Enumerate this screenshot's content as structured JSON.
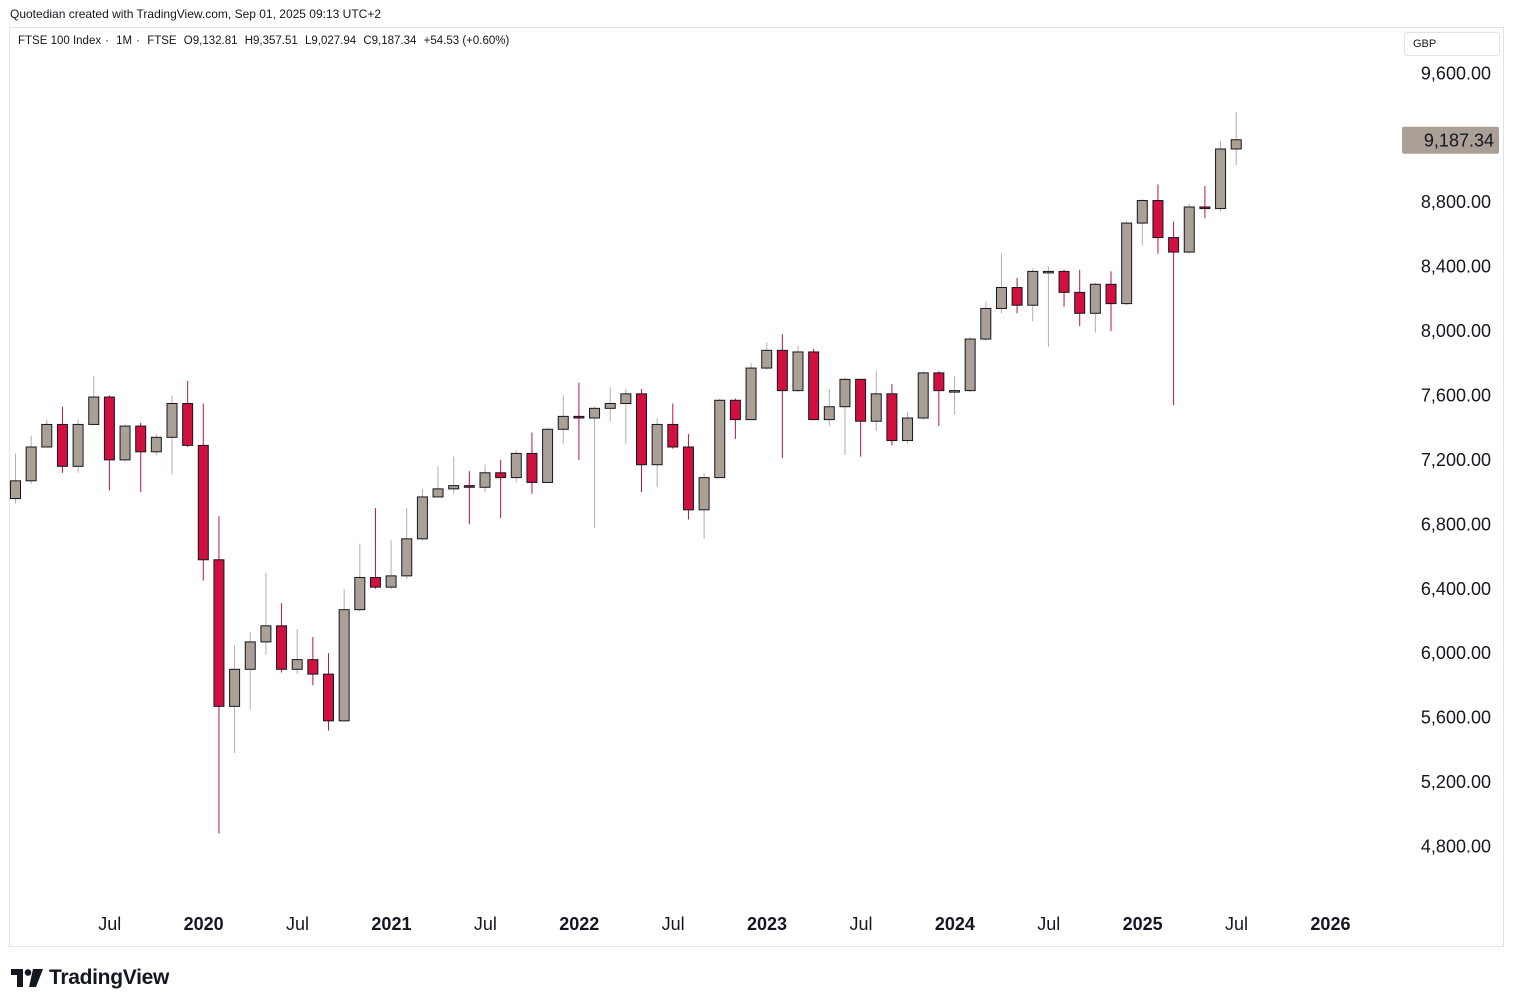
{
  "header": {
    "attribution": "Quotedian created with TradingView.com, Sep 01, 2025 09:13 UTC+2"
  },
  "legend": {
    "symbol": "FTSE 100 Index",
    "interval": "1M",
    "exchange": "FTSE",
    "open": "O9,132.81",
    "high": "H9,357.51",
    "low": "L9,027.94",
    "close": "C9,187.34",
    "change": "+54.53 (+0.60%)"
  },
  "currency_label": "GBP",
  "last_price_label": "9,187.34",
  "brand": {
    "name": "TradingView"
  },
  "colors": {
    "up": "#aba095",
    "down": "#d1103f",
    "wick_up": "#b7aea5",
    "wick_down": "#b8154a",
    "border": "#131722",
    "price_tag": "#aba095"
  },
  "chart_data": {
    "type": "candlestick",
    "interval": "1M",
    "ylim": [
      4600,
      9800
    ],
    "y_ticks": [
      "9,600.00",
      "8,800.00",
      "8,400.00",
      "8,000.00",
      "7,600.00",
      "7,200.00",
      "6,800.00",
      "6,400.00",
      "6,000.00",
      "5,600.00",
      "5,200.00",
      "4,800.00"
    ],
    "y_tick_values": [
      9600,
      8800,
      8400,
      8000,
      7600,
      7200,
      6800,
      6400,
      6000,
      5600,
      5200,
      4800
    ],
    "x_ticks": [
      {
        "label": "Jul",
        "index": 5,
        "year": false
      },
      {
        "label": "2020",
        "index": 11,
        "year": true
      },
      {
        "label": "Jul",
        "index": 17,
        "year": false
      },
      {
        "label": "2021",
        "index": 23,
        "year": true
      },
      {
        "label": "Jul",
        "index": 29,
        "year": false
      },
      {
        "label": "2022",
        "index": 35,
        "year": true
      },
      {
        "label": "Jul",
        "index": 41,
        "year": false
      },
      {
        "label": "2023",
        "index": 47,
        "year": true
      },
      {
        "label": "Jul",
        "index": 53,
        "year": false
      },
      {
        "label": "2024",
        "index": 59,
        "year": true
      },
      {
        "label": "Jul",
        "index": 65,
        "year": false
      },
      {
        "label": "2025",
        "index": 71,
        "year": true
      },
      {
        "label": "Jul",
        "index": 77,
        "year": false
      },
      {
        "label": "2026",
        "index": 83,
        "year": true
      }
    ],
    "candles": [
      {
        "date": "2019-02",
        "o": 6960,
        "h": 7240,
        "l": 6930,
        "c": 7070
      },
      {
        "date": "2019-03",
        "o": 7070,
        "h": 7350,
        "l": 7050,
        "c": 7280
      },
      {
        "date": "2019-04",
        "o": 7280,
        "h": 7450,
        "l": 7280,
        "c": 7420
      },
      {
        "date": "2019-05",
        "o": 7420,
        "h": 7530,
        "l": 7120,
        "c": 7160
      },
      {
        "date": "2019-06",
        "o": 7160,
        "h": 7450,
        "l": 7120,
        "c": 7420
      },
      {
        "date": "2019-07",
        "o": 7420,
        "h": 7720,
        "l": 7420,
        "c": 7590
      },
      {
        "date": "2019-08",
        "o": 7590,
        "h": 7600,
        "l": 7010,
        "c": 7200
      },
      {
        "date": "2019-09",
        "o": 7200,
        "h": 7420,
        "l": 7190,
        "c": 7410
      },
      {
        "date": "2019-10",
        "o": 7410,
        "h": 7430,
        "l": 7000,
        "c": 7250
      },
      {
        "date": "2019-11",
        "o": 7250,
        "h": 7360,
        "l": 7230,
        "c": 7340
      },
      {
        "date": "2019-12",
        "o": 7340,
        "h": 7600,
        "l": 7110,
        "c": 7550
      },
      {
        "date": "2020-01",
        "o": 7550,
        "h": 7690,
        "l": 7280,
        "c": 7290
      },
      {
        "date": "2020-02",
        "o": 7290,
        "h": 7550,
        "l": 6450,
        "c": 6580
      },
      {
        "date": "2020-03",
        "o": 6580,
        "h": 6850,
        "l": 4880,
        "c": 5670
      },
      {
        "date": "2020-04",
        "o": 5670,
        "h": 6050,
        "l": 5380,
        "c": 5900
      },
      {
        "date": "2020-05",
        "o": 5900,
        "h": 6130,
        "l": 5650,
        "c": 6070
      },
      {
        "date": "2020-06",
        "o": 6070,
        "h": 6500,
        "l": 5990,
        "c": 6170
      },
      {
        "date": "2020-07",
        "o": 6170,
        "h": 6310,
        "l": 5880,
        "c": 5900
      },
      {
        "date": "2020-08",
        "o": 5900,
        "h": 6150,
        "l": 5870,
        "c": 5960
      },
      {
        "date": "2020-09",
        "o": 5960,
        "h": 6100,
        "l": 5800,
        "c": 5870
      },
      {
        "date": "2020-10",
        "o": 5870,
        "h": 6000,
        "l": 5520,
        "c": 5580
      },
      {
        "date": "2020-11",
        "o": 5580,
        "h": 6400,
        "l": 5580,
        "c": 6270
      },
      {
        "date": "2020-12",
        "o": 6270,
        "h": 6680,
        "l": 6260,
        "c": 6470
      },
      {
        "date": "2021-01",
        "o": 6470,
        "h": 6900,
        "l": 6400,
        "c": 6410
      },
      {
        "date": "2021-02",
        "o": 6410,
        "h": 6700,
        "l": 6400,
        "c": 6480
      },
      {
        "date": "2021-03",
        "o": 6480,
        "h": 6900,
        "l": 6460,
        "c": 6710
      },
      {
        "date": "2021-04",
        "o": 6710,
        "h": 7020,
        "l": 6700,
        "c": 6970
      },
      {
        "date": "2021-05",
        "o": 6970,
        "h": 7160,
        "l": 6970,
        "c": 7020
      },
      {
        "date": "2021-06",
        "o": 7020,
        "h": 7220,
        "l": 6990,
        "c": 7040
      },
      {
        "date": "2021-07",
        "o": 7040,
        "h": 7130,
        "l": 6800,
        "c": 7030
      },
      {
        "date": "2021-08",
        "o": 7030,
        "h": 7170,
        "l": 7000,
        "c": 7120
      },
      {
        "date": "2021-09",
        "o": 7120,
        "h": 7200,
        "l": 6840,
        "c": 7090
      },
      {
        "date": "2021-10",
        "o": 7090,
        "h": 7260,
        "l": 7060,
        "c": 7240
      },
      {
        "date": "2021-11",
        "o": 7240,
        "h": 7370,
        "l": 6990,
        "c": 7060
      },
      {
        "date": "2021-12",
        "o": 7060,
        "h": 7400,
        "l": 7060,
        "c": 7390
      },
      {
        "date": "2022-01",
        "o": 7390,
        "h": 7600,
        "l": 7300,
        "c": 7470
      },
      {
        "date": "2022-02",
        "o": 7470,
        "h": 7680,
        "l": 7200,
        "c": 7460
      },
      {
        "date": "2022-03",
        "o": 7460,
        "h": 7530,
        "l": 6780,
        "c": 7520
      },
      {
        "date": "2022-04",
        "o": 7520,
        "h": 7650,
        "l": 7440,
        "c": 7550
      },
      {
        "date": "2022-05",
        "o": 7550,
        "h": 7640,
        "l": 7300,
        "c": 7610
      },
      {
        "date": "2022-06",
        "o": 7610,
        "h": 7640,
        "l": 7000,
        "c": 7170
      },
      {
        "date": "2022-07",
        "o": 7170,
        "h": 7460,
        "l": 7030,
        "c": 7420
      },
      {
        "date": "2022-08",
        "o": 7420,
        "h": 7550,
        "l": 7270,
        "c": 7280
      },
      {
        "date": "2022-09",
        "o": 7280,
        "h": 7360,
        "l": 6830,
        "c": 6890
      },
      {
        "date": "2022-10",
        "o": 6890,
        "h": 7120,
        "l": 6710,
        "c": 7090
      },
      {
        "date": "2022-11",
        "o": 7090,
        "h": 7580,
        "l": 7090,
        "c": 7570
      },
      {
        "date": "2022-12",
        "o": 7570,
        "h": 7580,
        "l": 7330,
        "c": 7450
      },
      {
        "date": "2023-01",
        "o": 7450,
        "h": 7800,
        "l": 7450,
        "c": 7770
      },
      {
        "date": "2023-02",
        "o": 7770,
        "h": 7930,
        "l": 7760,
        "c": 7880
      },
      {
        "date": "2023-03",
        "o": 7880,
        "h": 7980,
        "l": 7210,
        "c": 7630
      },
      {
        "date": "2023-04",
        "o": 7630,
        "h": 7910,
        "l": 7620,
        "c": 7870
      },
      {
        "date": "2023-05",
        "o": 7870,
        "h": 7890,
        "l": 7450,
        "c": 7450
      },
      {
        "date": "2023-06",
        "o": 7450,
        "h": 7640,
        "l": 7410,
        "c": 7530
      },
      {
        "date": "2023-07",
        "o": 7530,
        "h": 7710,
        "l": 7230,
        "c": 7700
      },
      {
        "date": "2023-08",
        "o": 7700,
        "h": 7700,
        "l": 7220,
        "c": 7440
      },
      {
        "date": "2023-09",
        "o": 7440,
        "h": 7750,
        "l": 7380,
        "c": 7610
      },
      {
        "date": "2023-10",
        "o": 7610,
        "h": 7670,
        "l": 7290,
        "c": 7320
      },
      {
        "date": "2023-11",
        "o": 7320,
        "h": 7500,
        "l": 7300,
        "c": 7460
      },
      {
        "date": "2023-12",
        "o": 7460,
        "h": 7750,
        "l": 7450,
        "c": 7740
      },
      {
        "date": "2024-01",
        "o": 7740,
        "h": 7750,
        "l": 7410,
        "c": 7630
      },
      {
        "date": "2024-02",
        "o": 7630,
        "h": 7720,
        "l": 7480,
        "c": 7630
      },
      {
        "date": "2024-03",
        "o": 7630,
        "h": 7960,
        "l": 7620,
        "c": 7950
      },
      {
        "date": "2024-04",
        "o": 7950,
        "h": 8180,
        "l": 7940,
        "c": 8140
      },
      {
        "date": "2024-05",
        "o": 8140,
        "h": 8480,
        "l": 8110,
        "c": 8270
      },
      {
        "date": "2024-06",
        "o": 8270,
        "h": 8330,
        "l": 8110,
        "c": 8160
      },
      {
        "date": "2024-07",
        "o": 8160,
        "h": 8390,
        "l": 8060,
        "c": 8370
      },
      {
        "date": "2024-08",
        "o": 8370,
        "h": 8400,
        "l": 7900,
        "c": 8370
      },
      {
        "date": "2024-09",
        "o": 8370,
        "h": 8380,
        "l": 8150,
        "c": 8240
      },
      {
        "date": "2024-10",
        "o": 8240,
        "h": 8380,
        "l": 8030,
        "c": 8110
      },
      {
        "date": "2024-11",
        "o": 8110,
        "h": 8300,
        "l": 7990,
        "c": 8290
      },
      {
        "date": "2024-12",
        "o": 8290,
        "h": 8370,
        "l": 8000,
        "c": 8170
      },
      {
        "date": "2025-01",
        "o": 8170,
        "h": 8680,
        "l": 8160,
        "c": 8670
      },
      {
        "date": "2025-02",
        "o": 8670,
        "h": 8820,
        "l": 8530,
        "c": 8810
      },
      {
        "date": "2025-03",
        "o": 8810,
        "h": 8910,
        "l": 8480,
        "c": 8580
      },
      {
        "date": "2025-04",
        "o": 8580,
        "h": 8680,
        "l": 7540,
        "c": 8490
      },
      {
        "date": "2025-05",
        "o": 8490,
        "h": 8790,
        "l": 8480,
        "c": 8770
      },
      {
        "date": "2025-06",
        "o": 8770,
        "h": 8900,
        "l": 8700,
        "c": 8760
      },
      {
        "date": "2025-07",
        "o": 8760,
        "h": 9180,
        "l": 8740,
        "c": 9130
      },
      {
        "date": "2025-08",
        "o": 9130,
        "h": 9360,
        "l": 9030,
        "c": 9187.34
      }
    ]
  }
}
